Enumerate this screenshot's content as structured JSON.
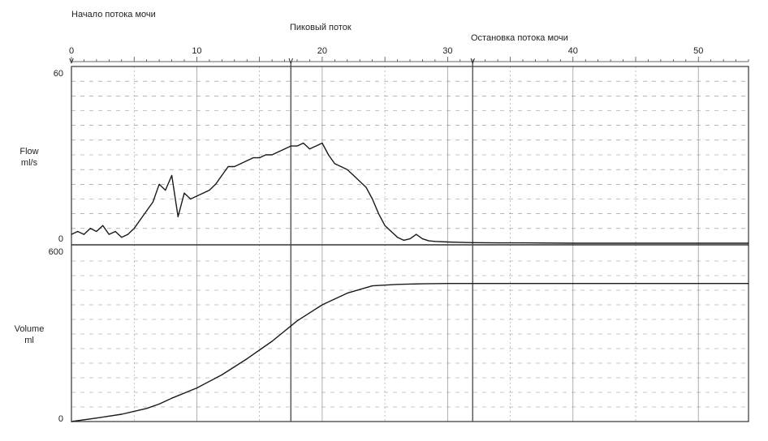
{
  "annotations": {
    "start": "Начало потока мочи",
    "peak": "Пиковый поток",
    "stop": "Остановка потока мочи",
    "marker_glyph": "v"
  },
  "chart_data": [
    {
      "type": "line",
      "panel": "flow",
      "ylabel_line1": "Flow",
      "ylabel_line2": "ml/s",
      "xlim": [
        0,
        54
      ],
      "ylim": [
        0,
        60
      ],
      "x_ticks": [
        0,
        10,
        20,
        30,
        40,
        50
      ],
      "y_tick_labels": [
        "60",
        "0"
      ],
      "grid": true,
      "markers_x": [
        0,
        17.5,
        32
      ],
      "series": [
        {
          "x": [
            0,
            0.5,
            1,
            1.5,
            2,
            2.5,
            3,
            3.5,
            4,
            4.5,
            5,
            5.5,
            6,
            6.5,
            7,
            7.5,
            8,
            8.5,
            9,
            9.5,
            10,
            10.5,
            11,
            11.5,
            12,
            12.5,
            13,
            13.5,
            14,
            14.5,
            15,
            15.5,
            16,
            16.5,
            17,
            17.5,
            18,
            18.5,
            19,
            19.5,
            20,
            20.5,
            21,
            21.5,
            22,
            22.5,
            23,
            23.5,
            24,
            24.5,
            25,
            25.5,
            26,
            26.5,
            27,
            27.5,
            28,
            28.5,
            29,
            30,
            31,
            32,
            34,
            36,
            40,
            45,
            50,
            54
          ],
          "y": [
            3,
            4,
            3,
            5,
            4,
            6,
            3,
            4,
            2,
            3,
            5,
            8,
            11,
            14,
            20,
            18,
            23,
            9,
            17,
            15,
            16,
            17,
            18,
            20,
            23,
            26,
            26,
            27,
            28,
            29,
            29,
            30,
            30,
            31,
            32,
            33,
            33,
            34,
            32,
            33,
            34,
            30,
            27,
            26,
            25,
            23,
            21,
            19,
            15,
            10,
            6,
            4,
            2,
            1,
            1.5,
            3,
            1.5,
            0.8,
            0.6,
            0.4,
            0.3,
            0.2,
            0.1,
            0.1,
            0,
            0,
            0,
            0
          ]
        }
      ]
    },
    {
      "type": "line",
      "panel": "volume",
      "ylabel_line1": "Volume",
      "ylabel_line2": "ml",
      "xlim": [
        0,
        54
      ],
      "ylim": [
        0,
        600
      ],
      "y_tick_labels": [
        "600",
        "0"
      ],
      "grid": true,
      "markers_x": [
        0,
        17.5,
        32
      ],
      "series": [
        {
          "x": [
            0,
            2,
            4,
            6,
            7,
            8,
            10,
            12,
            14,
            16,
            18,
            20,
            22,
            24,
            26,
            28,
            30,
            32,
            40,
            54
          ],
          "y": [
            0,
            12,
            25,
            45,
            60,
            80,
            115,
            160,
            215,
            275,
            345,
            400,
            440,
            465,
            470,
            472,
            473,
            473,
            473,
            473
          ]
        }
      ]
    }
  ]
}
